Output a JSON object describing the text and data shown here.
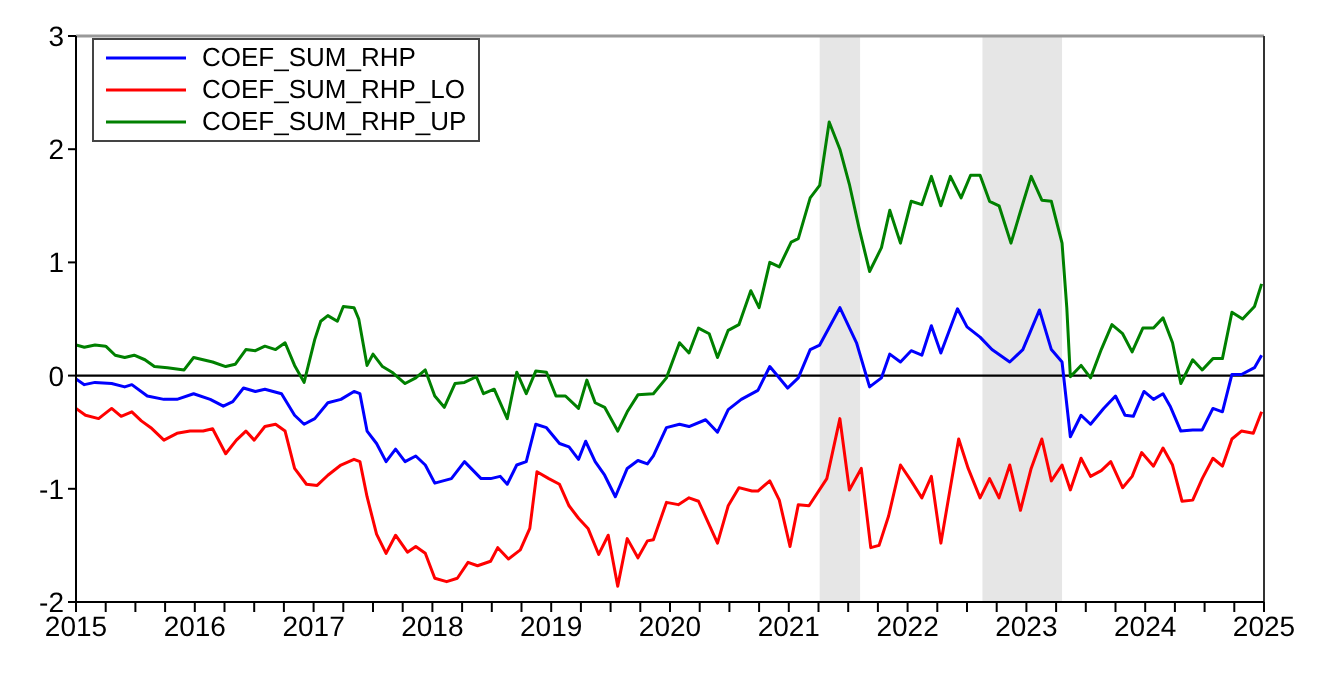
{
  "chart_data": {
    "type": "line",
    "xlim": [
      2015,
      2025
    ],
    "ylim": [
      -2,
      3
    ],
    "xticks": [
      2015,
      {
        "value": 2015.25,
        "label": null
      },
      {
        "value": 2015.5,
        "label": null
      },
      {
        "value": 2015.75,
        "label": null
      },
      2016,
      {
        "value": 2016.25,
        "label": null
      },
      {
        "value": 2016.5,
        "label": null
      },
      {
        "value": 2016.75,
        "label": null
      },
      2017,
      {
        "value": 2017.25,
        "label": null
      },
      {
        "value": 2017.5,
        "label": null
      },
      {
        "value": 2017.75,
        "label": null
      },
      2018,
      {
        "value": 2018.25,
        "label": null
      },
      {
        "value": 2018.5,
        "label": null
      },
      {
        "value": 2018.75,
        "label": null
      },
      2019,
      {
        "value": 2019.25,
        "label": null
      },
      {
        "value": 2019.5,
        "label": null
      },
      {
        "value": 2019.75,
        "label": null
      },
      2020,
      {
        "value": 2020.25,
        "label": null
      },
      {
        "value": 2020.5,
        "label": null
      },
      {
        "value": 2020.75,
        "label": null
      },
      2021,
      {
        "value": 2021.25,
        "label": null
      },
      {
        "value": 2021.5,
        "label": null
      },
      {
        "value": 2021.75,
        "label": null
      },
      2022,
      {
        "value": 2022.25,
        "label": null
      },
      {
        "value": 2022.5,
        "label": null
      },
      {
        "value": 2022.75,
        "label": null
      },
      2023,
      {
        "value": 2023.25,
        "label": null
      },
      {
        "value": 2023.5,
        "label": null
      },
      {
        "value": 2023.75,
        "label": null
      },
      2024,
      {
        "value": 2024.25,
        "label": null
      },
      {
        "value": 2024.5,
        "label": null
      },
      {
        "value": 2024.75,
        "label": null
      },
      2025
    ],
    "yticks": [
      -2,
      -1,
      0,
      1,
      2,
      3
    ],
    "grid": false,
    "legend": "top left",
    "marker": "none",
    "line_style": "solid",
    "ref_lines": [
      {
        "axis": "y",
        "value": 0,
        "color": "#000000"
      }
    ],
    "bands": [
      {
        "axis": "x",
        "from": 2021.26,
        "to": 2021.6,
        "color": "#e6e6e6"
      },
      {
        "axis": "x",
        "from": 2022.63,
        "to": 2023.3,
        "color": "#e6e6e6"
      }
    ],
    "series": [
      {
        "name": "COEF_SUM_RHP",
        "color": "#0000ff",
        "x": [
          2015,
          2015.07,
          2015.16,
          2015.3,
          2015.41,
          2015.47,
          2015.6,
          2015.74,
          2015.85,
          2015.99,
          2016.13,
          2016.24,
          2016.32,
          2016.41,
          2016.51,
          2016.59,
          2016.73,
          2016.84,
          2016.92,
          2017.01,
          2017.12,
          2017.23,
          2017.34,
          2017.39,
          2017.45,
          2017.53,
          2017.61,
          2017.69,
          2017.77,
          2017.86,
          2017.94,
          2018.02,
          2018.16,
          2018.27,
          2018.41,
          2018.49,
          2018.57,
          2018.63,
          2018.71,
          2018.79,
          2018.87,
          2018.96,
          2019.07,
          2019.15,
          2019.23,
          2019.29,
          2019.37,
          2019.45,
          2019.54,
          2019.64,
          2019.73,
          2019.81,
          2019.86,
          2019.97,
          2020.08,
          2020.16,
          2020.3,
          2020.4,
          2020.49,
          2020.6,
          2020.74,
          2020.84,
          2020.99,
          2021.08,
          2021.18,
          2021.26,
          2021.43,
          2021.57,
          2021.68,
          2021.78,
          2021.85,
          2021.94,
          2022.03,
          2022.12,
          2022.2,
          2022.28,
          2022.42,
          2022.5,
          2022.61,
          2022.71,
          2022.86,
          2022.97,
          2023.11,
          2023.21,
          2023.3,
          2023.37,
          2023.46,
          2023.54,
          2023.65,
          2023.75,
          2023.83,
          2023.9,
          2023.99,
          2024.07,
          2024.15,
          2024.21,
          2024.3,
          2024.4,
          2024.48,
          2024.57,
          2024.65,
          2024.73,
          2024.81,
          2024.92,
          2024.98
        ],
        "values": [
          -0.03,
          -0.08,
          -0.06,
          -0.07,
          -0.1,
          -0.08,
          -0.18,
          -0.21,
          -0.21,
          -0.16,
          -0.21,
          -0.27,
          -0.23,
          -0.11,
          -0.14,
          -0.12,
          -0.16,
          -0.35,
          -0.43,
          -0.38,
          -0.24,
          -0.21,
          -0.14,
          -0.16,
          -0.49,
          -0.6,
          -0.76,
          -0.65,
          -0.76,
          -0.71,
          -0.79,
          -0.95,
          -0.91,
          -0.76,
          -0.91,
          -0.91,
          -0.89,
          -0.96,
          -0.79,
          -0.76,
          -0.43,
          -0.46,
          -0.6,
          -0.63,
          -0.74,
          -0.58,
          -0.76,
          -0.88,
          -1.07,
          -0.82,
          -0.75,
          -0.78,
          -0.71,
          -0.46,
          -0.43,
          -0.45,
          -0.39,
          -0.5,
          -0.3,
          -0.21,
          -0.13,
          0.08,
          -0.11,
          -0.02,
          0.23,
          0.27,
          0.6,
          0.29,
          -0.1,
          -0.02,
          0.19,
          0.12,
          0.22,
          0.18,
          0.44,
          0.2,
          0.59,
          0.43,
          0.34,
          0.23,
          0.12,
          0.23,
          0.58,
          0.23,
          0.12,
          -0.54,
          -0.35,
          -0.43,
          -0.29,
          -0.18,
          -0.35,
          -0.36,
          -0.14,
          -0.21,
          -0.16,
          -0.27,
          -0.49,
          -0.48,
          -0.48,
          -0.29,
          -0.32,
          0.01,
          0.01,
          0.07,
          0.18
        ]
      },
      {
        "name": "COEF_SUM_RHP_LO",
        "color": "#ff0000",
        "x": [
          2015,
          2015.08,
          2015.19,
          2015.3,
          2015.38,
          2015.47,
          2015.55,
          2015.63,
          2015.74,
          2015.85,
          2015.96,
          2016.07,
          2016.15,
          2016.26,
          2016.35,
          2016.43,
          2016.5,
          2016.59,
          2016.68,
          2016.76,
          2016.84,
          2016.94,
          2017.03,
          2017.12,
          2017.23,
          2017.34,
          2017.39,
          2017.45,
          2017.53,
          2017.61,
          2017.69,
          2017.79,
          2017.86,
          2017.94,
          2018.02,
          2018.12,
          2018.21,
          2018.3,
          2018.38,
          2018.49,
          2018.55,
          2018.64,
          2018.74,
          2018.82,
          2018.88,
          2018.98,
          2019.07,
          2019.15,
          2019.23,
          2019.31,
          2019.4,
          2019.48,
          2019.56,
          2019.64,
          2019.73,
          2019.81,
          2019.86,
          2019.97,
          2020.07,
          2020.16,
          2020.24,
          2020.4,
          2020.49,
          2020.58,
          2020.69,
          2020.74,
          2020.84,
          2020.92,
          2021.01,
          2021.08,
          2021.17,
          2021.32,
          2021.43,
          2021.51,
          2021.61,
          2021.69,
          2021.76,
          2021.84,
          2021.94,
          2022.03,
          2022.12,
          2022.2,
          2022.28,
          2022.43,
          2022.51,
          2022.61,
          2022.69,
          2022.77,
          2022.86,
          2022.95,
          2023.04,
          2023.13,
          2023.21,
          2023.3,
          2023.37,
          2023.46,
          2023.54,
          2023.63,
          2023.71,
          2023.81,
          2023.89,
          2023.97,
          2024.07,
          2024.15,
          2024.23,
          2024.31,
          2024.4,
          2024.48,
          2024.57,
          2024.65,
          2024.73,
          2024.81,
          2024.91,
          2024.98
        ],
        "values": [
          -0.29,
          -0.35,
          -0.38,
          -0.29,
          -0.36,
          -0.32,
          -0.4,
          -0.46,
          -0.57,
          -0.51,
          -0.49,
          -0.49,
          -0.47,
          -0.69,
          -0.57,
          -0.49,
          -0.57,
          -0.45,
          -0.43,
          -0.49,
          -0.82,
          -0.96,
          -0.97,
          -0.88,
          -0.79,
          -0.74,
          -0.76,
          -1.07,
          -1.4,
          -1.57,
          -1.41,
          -1.56,
          -1.51,
          -1.57,
          -1.79,
          -1.82,
          -1.79,
          -1.65,
          -1.68,
          -1.64,
          -1.52,
          -1.62,
          -1.54,
          -1.35,
          -0.85,
          -0.91,
          -0.96,
          -1.15,
          -1.26,
          -1.35,
          -1.58,
          -1.41,
          -1.86,
          -1.44,
          -1.61,
          -1.46,
          -1.45,
          -1.12,
          -1.14,
          -1.08,
          -1.11,
          -1.48,
          -1.15,
          -0.99,
          -1.02,
          -1.02,
          -0.93,
          -1.1,
          -1.51,
          -1.14,
          -1.15,
          -0.91,
          -0.38,
          -1.01,
          -0.82,
          -1.52,
          -1.5,
          -1.24,
          -0.79,
          -0.93,
          -1.08,
          -0.89,
          -1.48,
          -0.56,
          -0.82,
          -1.08,
          -0.91,
          -1.08,
          -0.79,
          -1.19,
          -0.82,
          -0.56,
          -0.93,
          -0.79,
          -1.01,
          -0.73,
          -0.89,
          -0.84,
          -0.76,
          -0.99,
          -0.89,
          -0.68,
          -0.8,
          -0.64,
          -0.79,
          -1.11,
          -1.1,
          -0.91,
          -0.73,
          -0.8,
          -0.56,
          -0.49,
          -0.51,
          -0.32
        ]
      },
      {
        "name": "COEF_SUM_RHP_UP",
        "color": "#008000",
        "x": [
          2015,
          2015.07,
          2015.16,
          2015.25,
          2015.33,
          2015.41,
          2015.49,
          2015.58,
          2015.66,
          2015.77,
          2015.91,
          2015.99,
          2016.07,
          2016.15,
          2016.26,
          2016.34,
          2016.43,
          2016.51,
          2016.59,
          2016.68,
          2016.76,
          2016.84,
          2016.92,
          2017.01,
          2017.06,
          2017.12,
          2017.2,
          2017.25,
          2017.34,
          2017.38,
          2017.45,
          2017.5,
          2017.58,
          2017.66,
          2017.77,
          2017.86,
          2017.94,
          2018.02,
          2018.1,
          2018.19,
          2018.27,
          2018.37,
          2018.43,
          2018.52,
          2018.63,
          2018.71,
          2018.79,
          2018.87,
          2018.96,
          2019.04,
          2019.12,
          2019.23,
          2019.3,
          2019.37,
          2019.45,
          2019.56,
          2019.64,
          2019.73,
          2019.86,
          2019.97,
          2020.08,
          2020.16,
          2020.24,
          2020.33,
          2020.4,
          2020.49,
          2020.58,
          2020.68,
          2020.75,
          2020.84,
          2020.92,
          2021.02,
          2021.08,
          2021.18,
          2021.26,
          2021.34,
          2021.43,
          2021.51,
          2021.59,
          2021.68,
          2021.78,
          2021.85,
          2021.94,
          2022.03,
          2022.12,
          2022.2,
          2022.28,
          2022.36,
          2022.45,
          2022.53,
          2022.61,
          2022.69,
          2022.77,
          2022.87,
          2022.97,
          2023.04,
          2023.13,
          2023.21,
          2023.3,
          2023.34,
          2023.37,
          2023.46,
          2023.54,
          2023.63,
          2023.72,
          2023.81,
          2023.89,
          2023.98,
          2024.07,
          2024.15,
          2024.23,
          2024.3,
          2024.4,
          2024.48,
          2024.57,
          2024.65,
          2024.73,
          2024.82,
          2024.92,
          2024.98
        ],
        "values": [
          0.27,
          0.25,
          0.27,
          0.26,
          0.18,
          0.16,
          0.18,
          0.14,
          0.08,
          0.07,
          0.05,
          0.16,
          0.14,
          0.12,
          0.08,
          0.1,
          0.23,
          0.22,
          0.26,
          0.23,
          0.29,
          0.09,
          -0.06,
          0.32,
          0.48,
          0.53,
          0.48,
          0.61,
          0.6,
          0.5,
          0.09,
          0.19,
          0.08,
          0.03,
          -0.07,
          -0.02,
          0.05,
          -0.18,
          -0.28,
          -0.07,
          -0.06,
          -0.01,
          -0.16,
          -0.12,
          -0.38,
          0.03,
          -0.16,
          0.04,
          0.03,
          -0.18,
          -0.18,
          -0.29,
          -0.04,
          -0.24,
          -0.28,
          -0.49,
          -0.32,
          -0.17,
          -0.16,
          -0.02,
          0.29,
          0.2,
          0.42,
          0.37,
          0.16,
          0.4,
          0.45,
          0.75,
          0.6,
          1.0,
          0.96,
          1.18,
          1.21,
          1.57,
          1.68,
          2.24,
          2.0,
          1.69,
          1.31,
          0.92,
          1.13,
          1.46,
          1.17,
          1.54,
          1.51,
          1.76,
          1.5,
          1.76,
          1.57,
          1.77,
          1.77,
          1.54,
          1.5,
          1.17,
          1.52,
          1.76,
          1.55,
          1.54,
          1.17,
          0.6,
          -0.01,
          0.09,
          -0.02,
          0.23,
          0.45,
          0.37,
          0.21,
          0.42,
          0.42,
          0.51,
          0.29,
          -0.07,
          0.14,
          0.05,
          0.15,
          0.15,
          0.56,
          0.5,
          0.61,
          0.81
        ]
      }
    ]
  }
}
